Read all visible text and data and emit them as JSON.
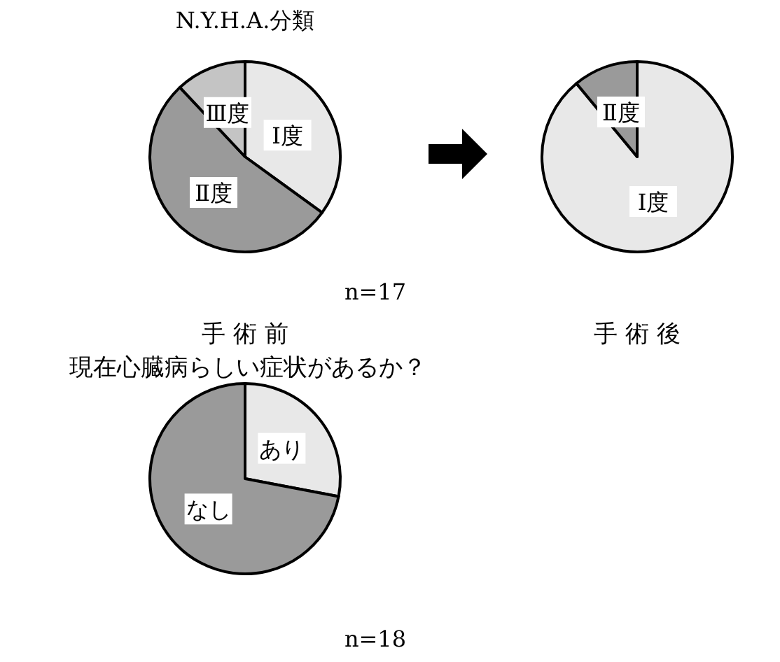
{
  "chart_data": [
    {
      "type": "pie",
      "title": "N.Y.H.A.分類",
      "xlabel": "手 術 前",
      "annotations": [
        "n=17"
      ],
      "categories": [
        "Ⅰ度",
        "Ⅱ度",
        "Ⅲ度"
      ],
      "values": [
        35,
        53,
        12
      ],
      "colors": [
        "#e8e8e8",
        "#9a9a9a",
        "#c4c4c4"
      ]
    },
    {
      "type": "pie",
      "xlabel": "手 術 後",
      "categories": [
        "Ⅰ度",
        "Ⅱ度"
      ],
      "values": [
        89,
        11
      ],
      "colors": [
        "#e8e8e8",
        "#9a9a9a"
      ]
    },
    {
      "type": "pie",
      "title": "現在心臓病らしい症状があるか？",
      "annotations": [
        "n=18"
      ],
      "categories": [
        "あり",
        "なし"
      ],
      "values": [
        28,
        72
      ],
      "colors": [
        "#e8e8e8",
        "#9a9a9a"
      ]
    }
  ]
}
